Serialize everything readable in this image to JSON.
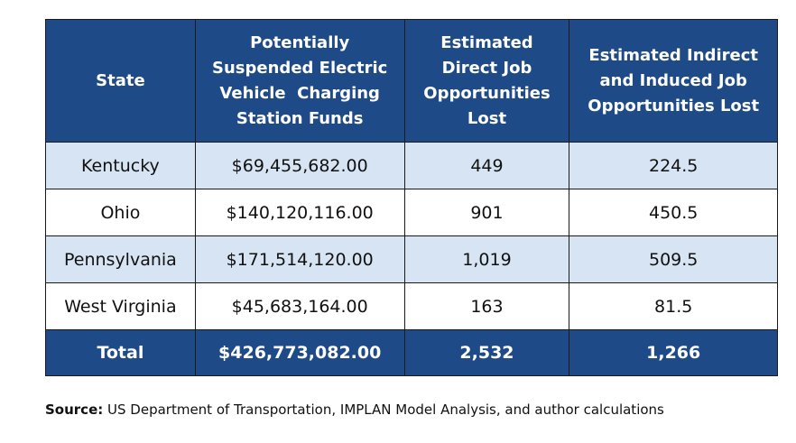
{
  "table": {
    "headers": [
      "State",
      "Potentially Suspended Electric Vehicle  Charging Station Funds",
      "Estimated Direct Job Opportunities Lost",
      "Estimated Indirect and Induced Job Opportunities Lost"
    ],
    "rows": [
      [
        "Kentucky",
        "$69,455,682.00",
        "449",
        "224.5"
      ],
      [
        "Ohio",
        "$140,120,116.00",
        "901",
        "450.5"
      ],
      [
        "Pennsylvania",
        "$171,514,120.00",
        "1,019",
        "509.5"
      ],
      [
        "West Virginia",
        "$45,683,164.00",
        "163",
        "81.5"
      ]
    ],
    "total": [
      "Total",
      "$426,773,082.00",
      "2,532",
      "1,266"
    ]
  },
  "source": {
    "label": "Source:",
    "text": " US Department of Transportation, IMPLAN Model Analysis, and author calculations"
  },
  "colors": {
    "header": "#1f4a88",
    "shaded_row": "#d6e4f3"
  }
}
